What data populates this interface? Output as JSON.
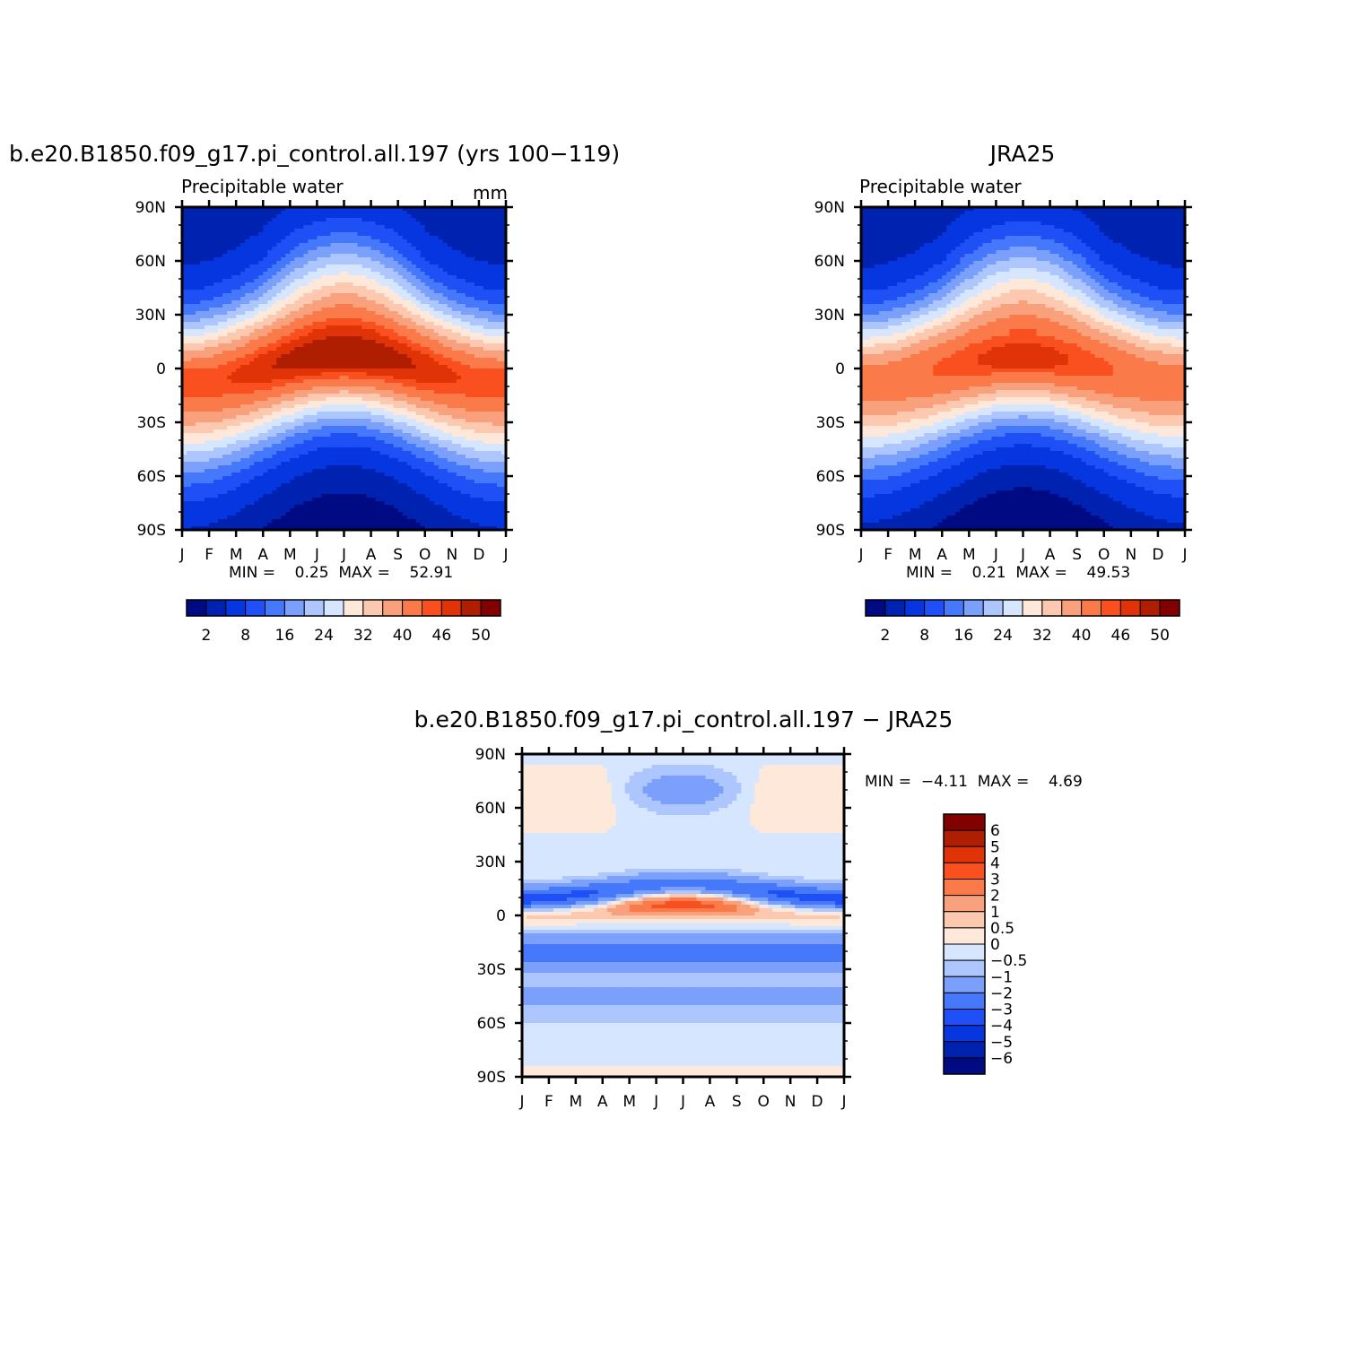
{
  "palette": [
    "#000a82",
    "#0022b0",
    "#0636e0",
    "#1f50f5",
    "#4578fa",
    "#7ba0fb",
    "#adc6fd",
    "#d6e6fe",
    "#fee8da",
    "#fcc8b0",
    "#f9a07c",
    "#fa7a4a",
    "#fa5020",
    "#e03408",
    "#b01e02",
    "#820000"
  ],
  "month_ticks": [
    "J",
    "F",
    "M",
    "A",
    "M",
    "J",
    "J",
    "A",
    "S",
    "O",
    "N",
    "D",
    "J"
  ],
  "lat_ticks": [
    "90N",
    "60N",
    "30N",
    "0",
    "30S",
    "60S",
    "90S"
  ],
  "panels": [
    {
      "title": "b.e20.B1850.f09_g17.pi_control.all.197 (yrs 100−119)",
      "left_label": "Precipitable water",
      "right_label": "mm",
      "stats": "MIN =    0.25  MAX =    52.91"
    },
    {
      "title": "JRA25",
      "left_label": "Precipitable water",
      "right_label": "",
      "stats": "MIN =    0.21  MAX =    49.53"
    },
    {
      "title": "b.e20.B1850.f09_g17.pi_control.all.197 − JRA25",
      "left_label": "",
      "right_label": "",
      "stats": "MIN =  −4.11  MAX =    4.69"
    }
  ],
  "colorbars": {
    "abs_labels": [
      "2",
      "8",
      "16",
      "24",
      "32",
      "40",
      "46",
      "50"
    ],
    "diff_labels": [
      "6",
      "5",
      "4",
      "3",
      "2",
      "1",
      "0.5",
      "0",
      "−0.5",
      "−1",
      "−2",
      "−3",
      "−4",
      "−5",
      "−6"
    ]
  },
  "chart_data": [
    {
      "type": "heatmap",
      "title": "b.e20.B1850.f09_g17.pi_control.all.197 (yrs 100-119)",
      "variable": "Precipitable water",
      "units": "mm",
      "x": [
        "J",
        "F",
        "M",
        "A",
        "M",
        "J",
        "J",
        "A",
        "S",
        "O",
        "N",
        "D",
        "J"
      ],
      "y": [
        "90N",
        "60N",
        "30N",
        "0",
        "30S",
        "60S",
        "90S"
      ],
      "ylim": [
        -90,
        90
      ],
      "min": 0.25,
      "max": 52.91,
      "levels": [
        2,
        4,
        8,
        12,
        16,
        20,
        24,
        28,
        32,
        36,
        40,
        44,
        46,
        48,
        50
      ],
      "params": {
        "center_amp": 8,
        "peak_month": 7,
        "peak": 51.5,
        "width": 42,
        "nh_base": 2.5,
        "sh_base": 1.5
      }
    },
    {
      "type": "heatmap",
      "title": "JRA25",
      "variable": "Precipitable water",
      "units": "mm",
      "x": [
        "J",
        "F",
        "M",
        "A",
        "M",
        "J",
        "J",
        "A",
        "S",
        "O",
        "N",
        "D",
        "J"
      ],
      "y": [
        "90N",
        "60N",
        "30N",
        "0",
        "30S",
        "60S",
        "90S"
      ],
      "ylim": [
        -90,
        90
      ],
      "min": 0.21,
      "max": 49.53,
      "levels": [
        2,
        4,
        8,
        12,
        16,
        20,
        24,
        28,
        32,
        36,
        40,
        44,
        46,
        48,
        50
      ],
      "params": {
        "center_amp": 7,
        "peak_month": 7,
        "peak": 48.5,
        "width": 42,
        "nh_base": 2.2,
        "sh_base": 1.3
      }
    },
    {
      "type": "heatmap",
      "title": "b.e20.B1850.f09_g17.pi_control.all.197 - JRA25",
      "x": [
        "J",
        "F",
        "M",
        "A",
        "M",
        "J",
        "J",
        "A",
        "S",
        "O",
        "N",
        "D",
        "J"
      ],
      "y": [
        "90N",
        "60N",
        "30N",
        "0",
        "30S",
        "60S",
        "90S"
      ],
      "ylim": [
        -90,
        90
      ],
      "min": -4.11,
      "max": 4.69,
      "levels": [
        -6,
        -5,
        -4,
        -3,
        -2,
        -1,
        -0.5,
        0,
        0.5,
        1,
        2,
        3,
        4,
        5,
        6
      ]
    }
  ]
}
